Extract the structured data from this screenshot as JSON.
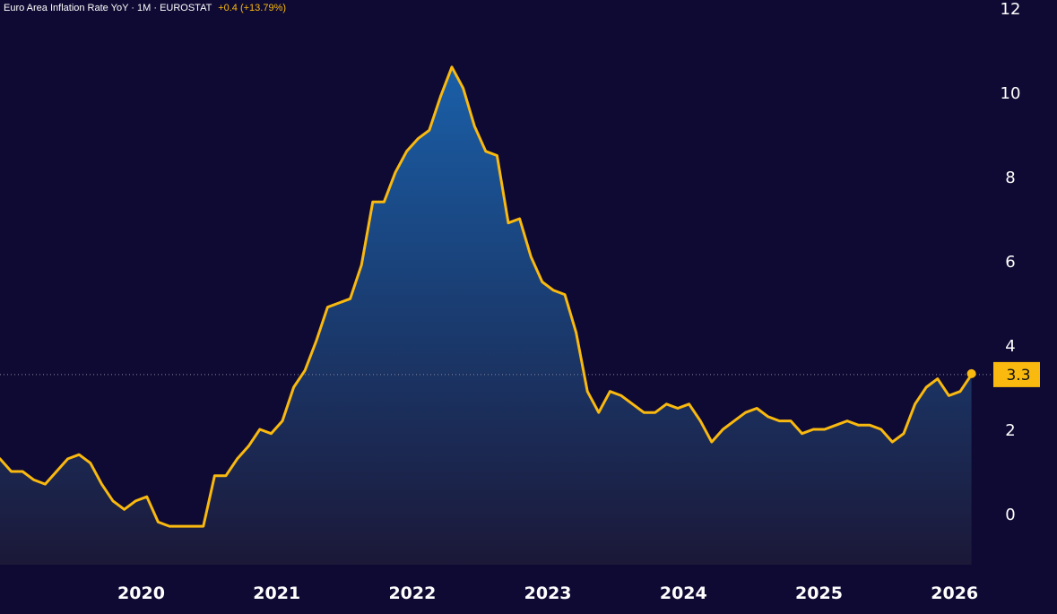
{
  "header": {
    "title": "Euro Area Inflation Rate YoY · 1M · EUROSTAT",
    "change": "+0.4 (+13.79%)"
  },
  "colors": {
    "background": "#0f0a33",
    "line": "#f9b90f",
    "area_top": "#1a5fa8",
    "area_bottom": "#1b1838",
    "text": "#ffffff",
    "last_value_bg": "#f9b90f"
  },
  "chart_data": {
    "type": "area",
    "title": "Euro Area Inflation Rate YoY",
    "x_start": "2019-06",
    "frequency": "monthly",
    "y_ticks": [
      0,
      2,
      4,
      6,
      8,
      10,
      12
    ],
    "ylim": [
      -1.2,
      12
    ],
    "x_tick_labels": [
      "2020",
      "2021",
      "2022",
      "2023",
      "2024",
      "2025",
      "2026"
    ],
    "grid": false,
    "last_value": 3.3,
    "last_value_label": "3.3",
    "series": [
      {
        "values": [
          1.3,
          1.0,
          1.0,
          0.8,
          0.7,
          1.0,
          1.3,
          1.4,
          1.2,
          0.7,
          0.3,
          0.1,
          0.3,
          0.4,
          -0.2,
          -0.3,
          -0.3,
          -0.3,
          -0.3,
          0.9,
          0.9,
          1.3,
          1.6,
          2.0,
          1.9,
          2.2,
          3.0,
          3.4,
          4.1,
          4.9,
          5.0,
          5.1,
          5.9,
          7.4,
          7.4,
          8.1,
          8.6,
          8.9,
          9.1,
          9.9,
          10.6,
          10.1,
          9.2,
          8.6,
          8.5,
          6.9,
          7.0,
          6.1,
          5.5,
          5.3,
          5.2,
          4.3,
          2.9,
          2.4,
          2.9,
          2.8,
          2.6,
          2.4,
          2.4,
          2.6,
          2.5,
          2.6,
          2.2,
          1.7,
          2.0,
          2.2,
          2.4,
          2.5,
          2.3,
          2.2,
          2.2,
          1.9,
          2.0,
          2.0,
          2.1,
          2.2,
          2.1,
          2.1,
          2.0,
          1.7,
          1.9,
          2.6,
          3.0,
          3.2,
          2.8,
          2.9,
          3.3
        ]
      }
    ]
  }
}
